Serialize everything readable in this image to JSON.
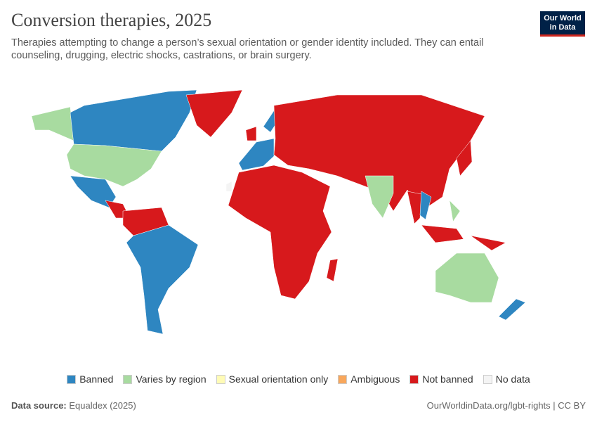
{
  "header": {
    "title": "Conversion therapies, 2025",
    "subtitle": "Therapies attempting to change a person’s sexual orientation or gender identity included. They can entail counseling, drugging, electric shocks, castrations, or brain surgery."
  },
  "logo": [
    "Our World",
    "in Data"
  ],
  "legend": [
    {
      "name": "Banned",
      "color": "#2e86c1"
    },
    {
      "name": "Varies by region",
      "color": "#a8dba0"
    },
    {
      "name": "Sexual orientation only",
      "color": "#fffbb6"
    },
    {
      "name": "Ambiguous",
      "color": "#f8a75c"
    },
    {
      "name": "Not banned",
      "color": "#d7191c"
    },
    {
      "name": "No data",
      "color": "#f4f4f4"
    }
  ],
  "footer": {
    "source_label": "Data source:",
    "source": "Equaldex (2025)",
    "url": "OurWorldinData.org/lgbt-rights | CC BY"
  }
}
